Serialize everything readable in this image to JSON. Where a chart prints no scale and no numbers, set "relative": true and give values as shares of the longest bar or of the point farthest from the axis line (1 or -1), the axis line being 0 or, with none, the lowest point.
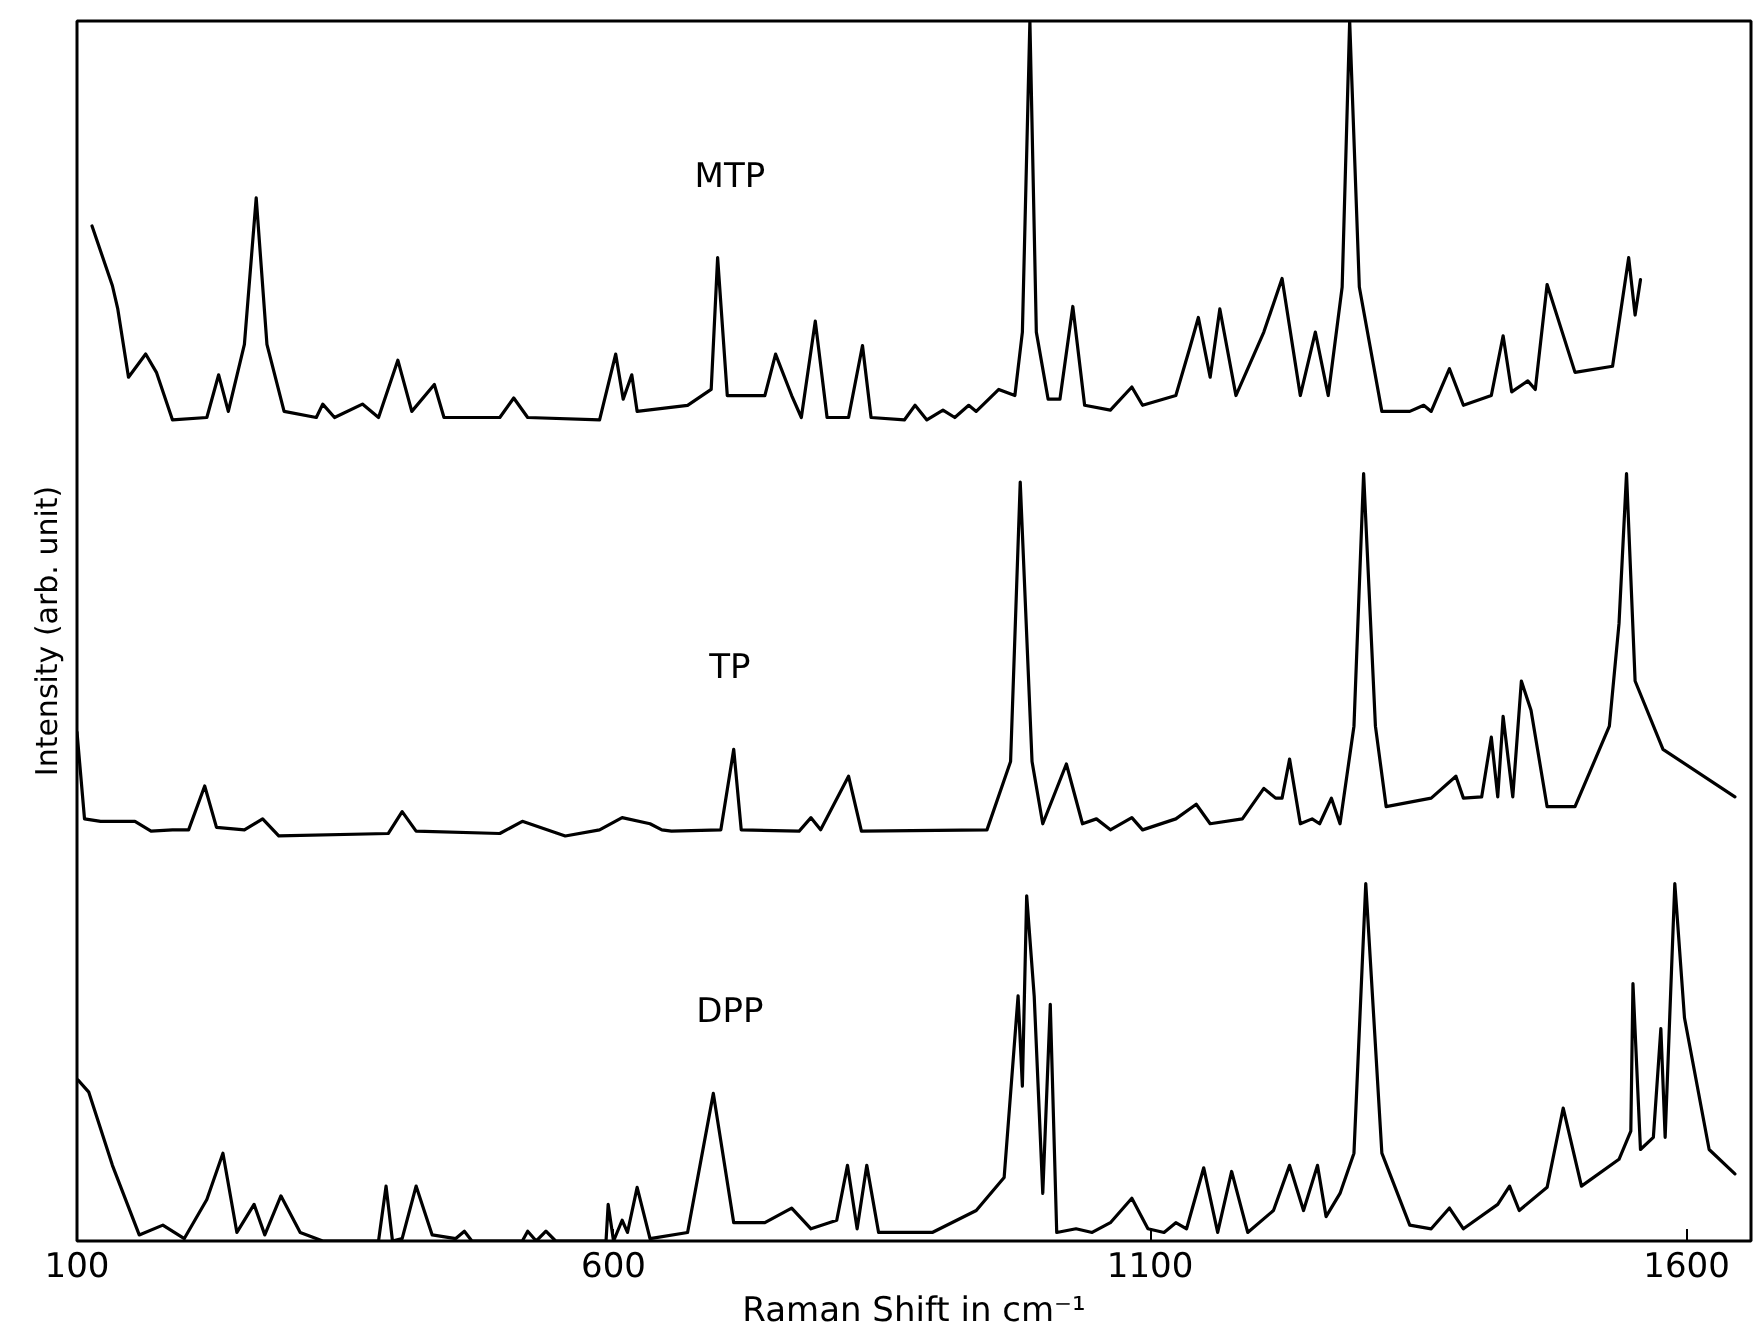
{
  "chart_data": {
    "type": "line",
    "relative": true,
    "xlabel": "Raman Shift in cm⁻¹",
    "ylabel": "Intensity (arb. unit)",
    "xlim": [
      100,
      1660
    ],
    "xticks": [
      100,
      600,
      1100,
      1600
    ],
    "series": [
      {
        "name": "MTP",
        "color": "#000000",
        "x": [
          114,
          133,
          138,
          148,
          164,
          174,
          189,
          221,
          232,
          241,
          256,
          267,
          277,
          293,
          323,
          329,
          340,
          366,
          381,
          399,
          412,
          433,
          442,
          494,
          507,
          520,
          587,
          602,
          609,
          617,
          622,
          669,
          691,
          697,
          706,
          741,
          751,
          766,
          775,
          788,
          799,
          819,
          832,
          840,
          871,
          881,
          892,
          907,
          918,
          931,
          938,
          959,
          974,
          981,
          988,
          994,
          1005,
          1016,
          1028,
          1039,
          1063,
          1083,
          1093,
          1124,
          1137,
          1145,
          1156,
          1165,
          1180,
          1206,
          1223,
          1240,
          1254,
          1266,
          1279,
          1286,
          1295,
          1316,
          1342,
          1355,
          1362,
          1379,
          1392,
          1418,
          1429,
          1437,
          1452,
          1459,
          1470,
          1496,
          1531,
          1546,
          1552,
          1557
        ],
        "values": [
          0.832,
          0.783,
          0.764,
          0.708,
          0.727,
          0.712,
          0.673,
          0.675,
          0.71,
          0.68,
          0.735,
          0.855,
          0.735,
          0.68,
          0.675,
          0.686,
          0.675,
          0.686,
          0.675,
          0.722,
          0.68,
          0.702,
          0.675,
          0.675,
          0.691,
          0.675,
          0.673,
          0.727,
          0.69,
          0.71,
          0.68,
          0.685,
          0.698,
          0.806,
          0.693,
          0.693,
          0.727,
          0.693,
          0.675,
          0.754,
          0.675,
          0.675,
          0.734,
          0.675,
          0.673,
          0.685,
          0.673,
          0.681,
          0.675,
          0.685,
          0.68,
          0.698,
          0.693,
          0.745,
          1.0,
          0.745,
          0.69,
          0.69,
          0.766,
          0.685,
          0.681,
          0.7,
          0.685,
          0.693,
          0.732,
          0.757,
          0.708,
          0.764,
          0.693,
          0.745,
          0.789,
          0.693,
          0.745,
          0.693,
          0.782,
          1.0,
          0.782,
          0.68,
          0.68,
          0.685,
          0.68,
          0.715,
          0.685,
          0.693,
          0.742,
          0.696,
          0.705,
          0.698,
          0.784,
          0.712,
          0.717,
          0.806,
          0.759,
          0.788
        ]
      },
      {
        "name": "TP",
        "color": "#000000",
        "x": [
          100,
          107,
          122,
          154,
          169,
          189,
          204,
          219,
          230,
          256,
          273,
          288,
          390,
          403,
          416,
          494,
          515,
          555,
          587,
          608,
          634,
          645,
          654,
          700,
          712,
          719,
          773,
          784,
          793,
          819,
          831,
          948,
          970,
          979,
          990,
          1000,
          1022,
          1037,
          1050,
          1063,
          1083,
          1093,
          1124,
          1143,
          1156,
          1186,
          1206,
          1217,
          1223,
          1230,
          1240,
          1251,
          1258,
          1269,
          1277,
          1290,
          1299,
          1310,
          1320,
          1362,
          1385,
          1392,
          1409,
          1418,
          1424,
          1429,
          1438,
          1446,
          1455,
          1470,
          1496,
          1528,
          1537,
          1544,
          1552,
          1578,
          1645
        ],
        "values": [
          0.417,
          0.346,
          0.344,
          0.344,
          0.336,
          0.337,
          0.337,
          0.373,
          0.339,
          0.337,
          0.346,
          0.332,
          0.334,
          0.352,
          0.336,
          0.334,
          0.344,
          0.332,
          0.337,
          0.347,
          0.342,
          0.337,
          0.336,
          0.337,
          0.403,
          0.337,
          0.336,
          0.347,
          0.337,
          0.381,
          0.336,
          0.337,
          0.393,
          0.622,
          0.393,
          0.342,
          0.391,
          0.342,
          0.346,
          0.337,
          0.347,
          0.337,
          0.346,
          0.358,
          0.342,
          0.346,
          0.371,
          0.363,
          0.363,
          0.395,
          0.342,
          0.346,
          0.342,
          0.363,
          0.342,
          0.422,
          0.629,
          0.422,
          0.356,
          0.363,
          0.381,
          0.363,
          0.364,
          0.413,
          0.364,
          0.43,
          0.364,
          0.459,
          0.435,
          0.356,
          0.356,
          0.422,
          0.506,
          0.629,
          0.459,
          0.403,
          0.364
        ]
      },
      {
        "name": "DPP",
        "color": "#000000",
        "x": [
          101,
          111,
          133,
          158,
          180,
          200,
          221,
          236,
          249,
          265,
          275,
          290,
          308,
          329,
          381,
          388,
          394,
          403,
          416,
          431,
          453,
          461,
          468,
          515,
          520,
          528,
          537,
          546,
          593,
          595,
          600,
          608,
          613,
          622,
          634,
          669,
          693,
          712,
          741,
          766,
          784,
          808,
          818,
          827,
          836,
          847,
          897,
          938,
          964,
          977,
          981,
          985,
          992,
          1000,
          1007,
          1013,
          1031,
          1046,
          1063,
          1083,
          1098,
          1113,
          1124,
          1134,
          1150,
          1163,
          1176,
          1191,
          1215,
          1230,
          1243,
          1256,
          1264,
          1277,
          1290,
          1301,
          1316,
          1342,
          1362,
          1379,
          1392,
          1424,
          1435,
          1444,
          1470,
          1485,
          1502,
          1537,
          1548,
          1550,
          1557,
          1569,
          1576,
          1580,
          1589,
          1598,
          1621,
          1645
        ],
        "values": [
          0.132,
          0.122,
          0.062,
          0.005,
          0.013,
          0.002,
          0.034,
          0.072,
          0.007,
          0.03,
          0.005,
          0.037,
          0.007,
          0.0,
          0.0,
          0.045,
          0.0,
          0.002,
          0.045,
          0.005,
          0.002,
          0.008,
          0.0,
          0.0,
          0.008,
          0.0,
          0.008,
          0.0,
          0.0,
          0.03,
          0.0,
          0.017,
          0.007,
          0.044,
          0.002,
          0.007,
          0.121,
          0.015,
          0.015,
          0.027,
          0.01,
          0.017,
          0.062,
          0.01,
          0.062,
          0.007,
          0.007,
          0.025,
          0.052,
          0.201,
          0.127,
          0.283,
          0.201,
          0.039,
          0.194,
          0.007,
          0.01,
          0.007,
          0.015,
          0.035,
          0.01,
          0.007,
          0.015,
          0.01,
          0.06,
          0.007,
          0.057,
          0.007,
          0.025,
          0.062,
          0.025,
          0.062,
          0.02,
          0.039,
          0.072,
          0.293,
          0.072,
          0.013,
          0.01,
          0.027,
          0.01,
          0.03,
          0.045,
          0.025,
          0.044,
          0.109,
          0.045,
          0.067,
          0.09,
          0.211,
          0.075,
          0.085,
          0.174,
          0.085,
          0.293,
          0.183,
          0.075,
          0.055
        ]
      }
    ]
  }
}
